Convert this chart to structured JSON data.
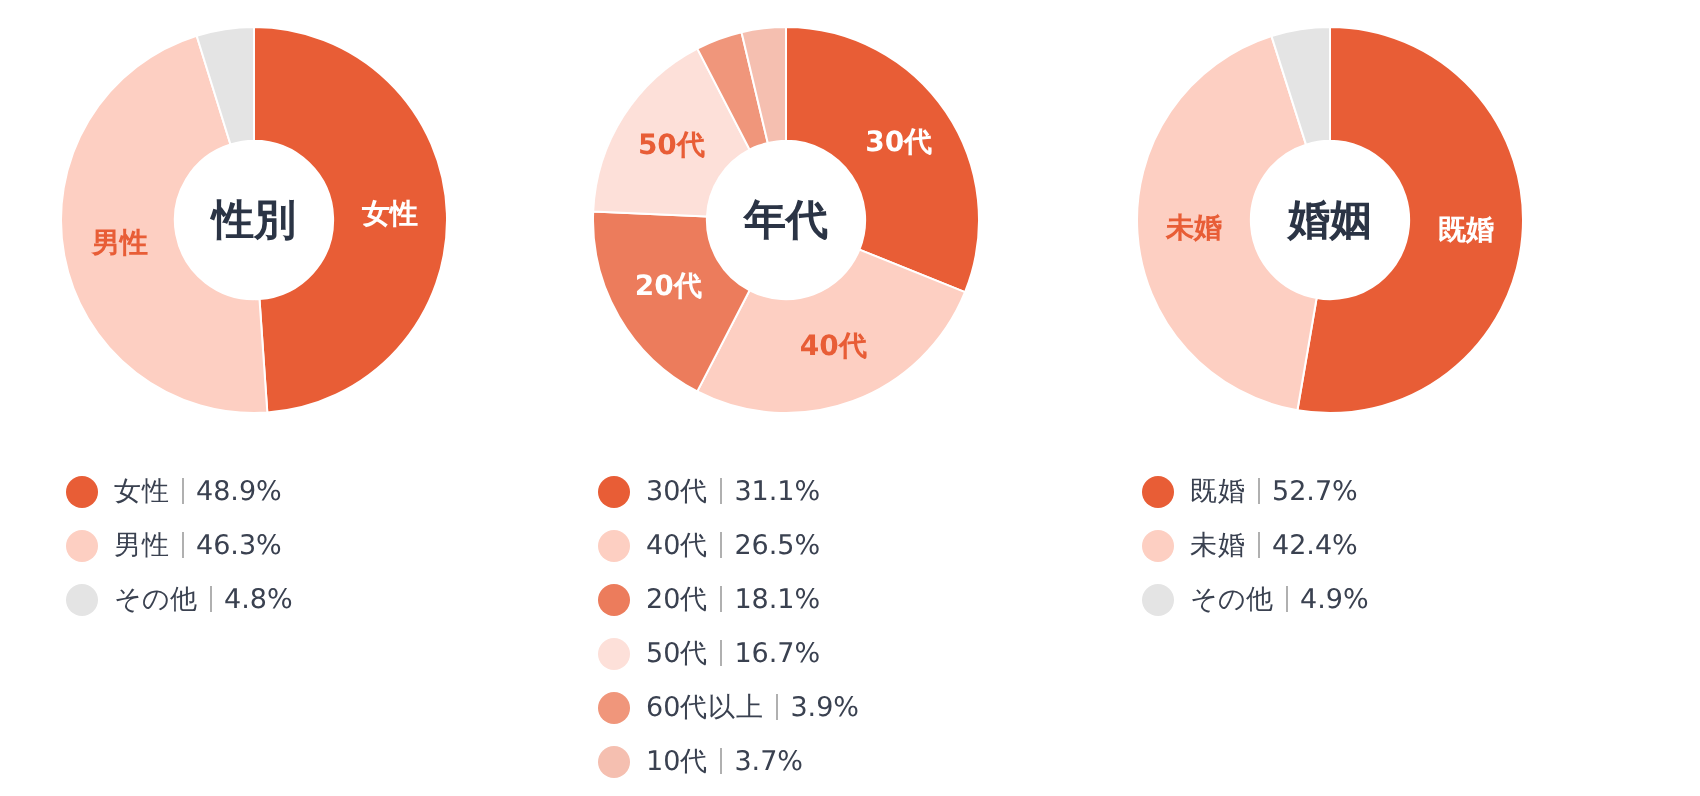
{
  "chart_data": [
    {
      "type": "donut",
      "title": "性別",
      "categories": [
        "女性",
        "男性",
        "その他"
      ],
      "values": [
        48.9,
        46.3,
        4.8
      ],
      "value_labels": [
        "48.9%",
        "46.3%",
        "4.8%"
      ],
      "colors": [
        "#e85d36",
        "#fdcfc2",
        "#e4e4e4"
      ],
      "legend": "bottom",
      "annotations": [
        {
          "text": "女性",
          "x": "女性"
        },
        {
          "text": "男性",
          "x": "男性"
        }
      ]
    },
    {
      "type": "donut",
      "title": "年代",
      "categories": [
        "30代",
        "40代",
        "20代",
        "50代",
        "60代以上",
        "10代"
      ],
      "values": [
        31.1,
        26.5,
        18.1,
        16.7,
        3.9,
        3.7
      ],
      "value_labels": [
        "31.1%",
        "26.5%",
        "18.1%",
        "16.7%",
        "3.9%",
        "3.7%"
      ],
      "colors": [
        "#e85d36",
        "#fdcfc2",
        "#ec7c5c",
        "#fde0d9",
        "#f0967b",
        "#f5bfb0"
      ],
      "legend": "bottom",
      "annotations": [
        {
          "text": "30代",
          "x": "30代"
        },
        {
          "text": "40代",
          "x": "40代"
        },
        {
          "text": "20代",
          "x": "20代"
        },
        {
          "text": "50代",
          "x": "50代"
        }
      ]
    },
    {
      "type": "donut",
      "title": "婚姻",
      "categories": [
        "既婚",
        "未婚",
        "その他"
      ],
      "values": [
        52.7,
        42.4,
        4.9
      ],
      "value_labels": [
        "52.7%",
        "42.4%",
        "4.9%"
      ],
      "colors": [
        "#e85d36",
        "#fdcfc2",
        "#e4e4e4"
      ],
      "legend": "bottom",
      "annotations": [
        {
          "text": "既婚",
          "x": "既婚"
        },
        {
          "text": "未婚",
          "x": "未婚"
        }
      ]
    }
  ]
}
